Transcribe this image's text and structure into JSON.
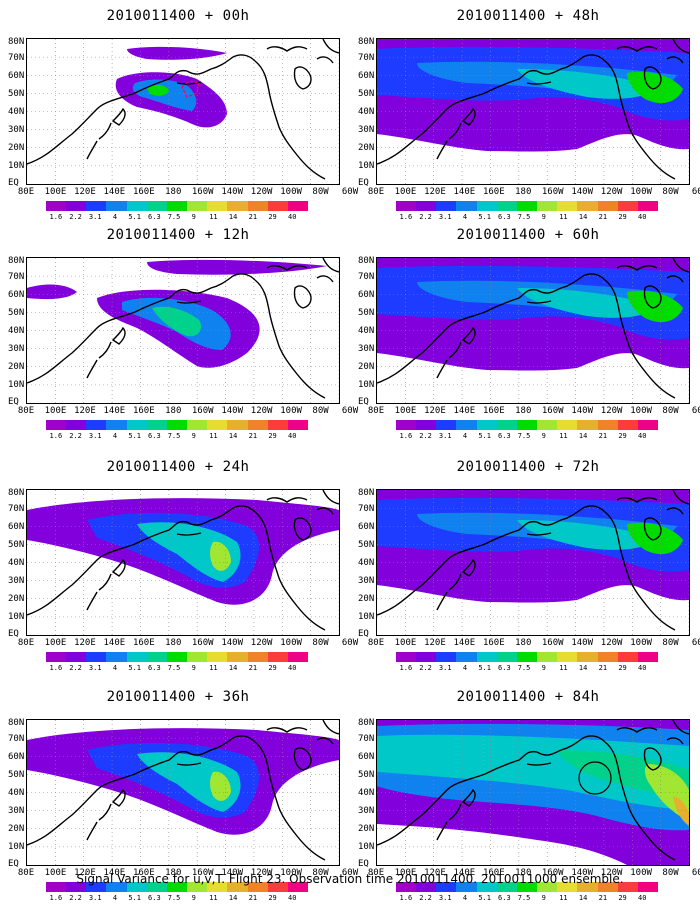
{
  "panels": [
    {
      "title": "2010011400 + 00h",
      "coverage": "low"
    },
    {
      "title": "2010011400 + 48h",
      "coverage": "high"
    },
    {
      "title": "2010011400 + 12h",
      "coverage": "low-mid"
    },
    {
      "title": "2010011400 + 60h",
      "coverage": "high"
    },
    {
      "title": "2010011400 + 24h",
      "coverage": "mid"
    },
    {
      "title": "2010011400 + 72h",
      "coverage": "high"
    },
    {
      "title": "2010011400 + 36h",
      "coverage": "mid"
    },
    {
      "title": "2010011400 + 84h",
      "coverage": "very-high"
    }
  ],
  "lat_labels": [
    "80N",
    "70N",
    "60N",
    "50N",
    "40N",
    "30N",
    "20N",
    "10N",
    "EQ"
  ],
  "lon_labels": [
    "80E",
    "100E",
    "120E",
    "140E",
    "160E",
    "180",
    "160W",
    "140W",
    "120W",
    "100W",
    "80W",
    "60W"
  ],
  "colorbar": {
    "labels": [
      "1.6",
      "2.2",
      "3.1",
      "4",
      "5.1",
      "6.3",
      "7.5",
      "9",
      "11",
      "14",
      "21",
      "29",
      "40"
    ],
    "colors": [
      "#a000c8",
      "#8200dc",
      "#1e3cff",
      "#0f82f0",
      "#00c8c8",
      "#00d28c",
      "#00dc00",
      "#a0e632",
      "#e6dc32",
      "#e6af2d",
      "#f08228",
      "#fa3c3c",
      "#f00082"
    ]
  },
  "footer": "Signal Variance for u,v,T. Flight 23. Observation time 2010011400. 2010011000 ensemble."
}
